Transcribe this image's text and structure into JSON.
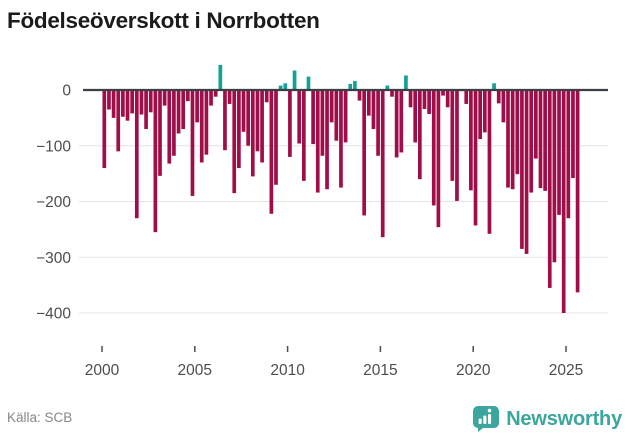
{
  "title": "Födelseöverskott i Norrbotten",
  "footer": {
    "source": "Källa: SCB",
    "brand": "Newsworthy"
  },
  "colors": {
    "negative_bar": "#a00e4a",
    "positive_bar": "#14a199",
    "zero_line": "#3a3f44",
    "gridline": "#e4e4e4",
    "axis_text": "#4d4d4d",
    "brand_teal": "#3ba69d"
  },
  "chart_data": {
    "type": "bar",
    "title": "Födelseöverskott i Norrbotten",
    "xlabel": "",
    "ylabel": "",
    "period": "quarterly",
    "start_period": "2000Q1",
    "end_period": "2025Q3",
    "ylim": [
      -440,
      60
    ],
    "grid": true,
    "legend": "none",
    "x_ticks": [
      {
        "label": "2000",
        "year": 2000
      },
      {
        "label": "2005",
        "year": 2005
      },
      {
        "label": "2010",
        "year": 2010
      },
      {
        "label": "2015",
        "year": 2015
      },
      {
        "label": "2020",
        "year": 2020
      },
      {
        "label": "2025",
        "year": 2025
      }
    ],
    "y_ticks": [
      {
        "label": "0",
        "value": 0
      },
      {
        "label": "−100",
        "value": -100
      },
      {
        "label": "−200",
        "value": -200
      },
      {
        "label": "−300",
        "value": -300
      },
      {
        "label": "−400",
        "value": -400
      }
    ],
    "values": [
      -140,
      -35,
      -50,
      -110,
      -48,
      -55,
      -42,
      -230,
      -44,
      -70,
      -40,
      -255,
      -154,
      -28,
      -132,
      -118,
      -78,
      -70,
      -20,
      -190,
      -58,
      -130,
      -116,
      -28,
      -12,
      45,
      -108,
      -25,
      -185,
      -140,
      -75,
      -100,
      -155,
      -110,
      -130,
      -22,
      -222,
      -170,
      8,
      12,
      -120,
      35,
      -96,
      -163,
      24,
      -97,
      -184,
      -118,
      -178,
      -58,
      -91,
      -175,
      -94,
      11,
      16,
      -19,
      -225,
      -46,
      -70,
      -118,
      -264,
      8,
      -12,
      -121,
      -112,
      26,
      -31,
      -94,
      -160,
      -34,
      -43,
      -207,
      -246,
      -10,
      -31,
      -163,
      -199,
      -2,
      -25,
      -180,
      -243,
      -88,
      -76,
      -258,
      12,
      -24,
      -58,
      -175,
      -178,
      -151,
      -285,
      -294,
      -184,
      -123,
      -176,
      -181,
      -355,
      -309,
      -224,
      -400,
      -230,
      -158,
      -363
    ]
  }
}
